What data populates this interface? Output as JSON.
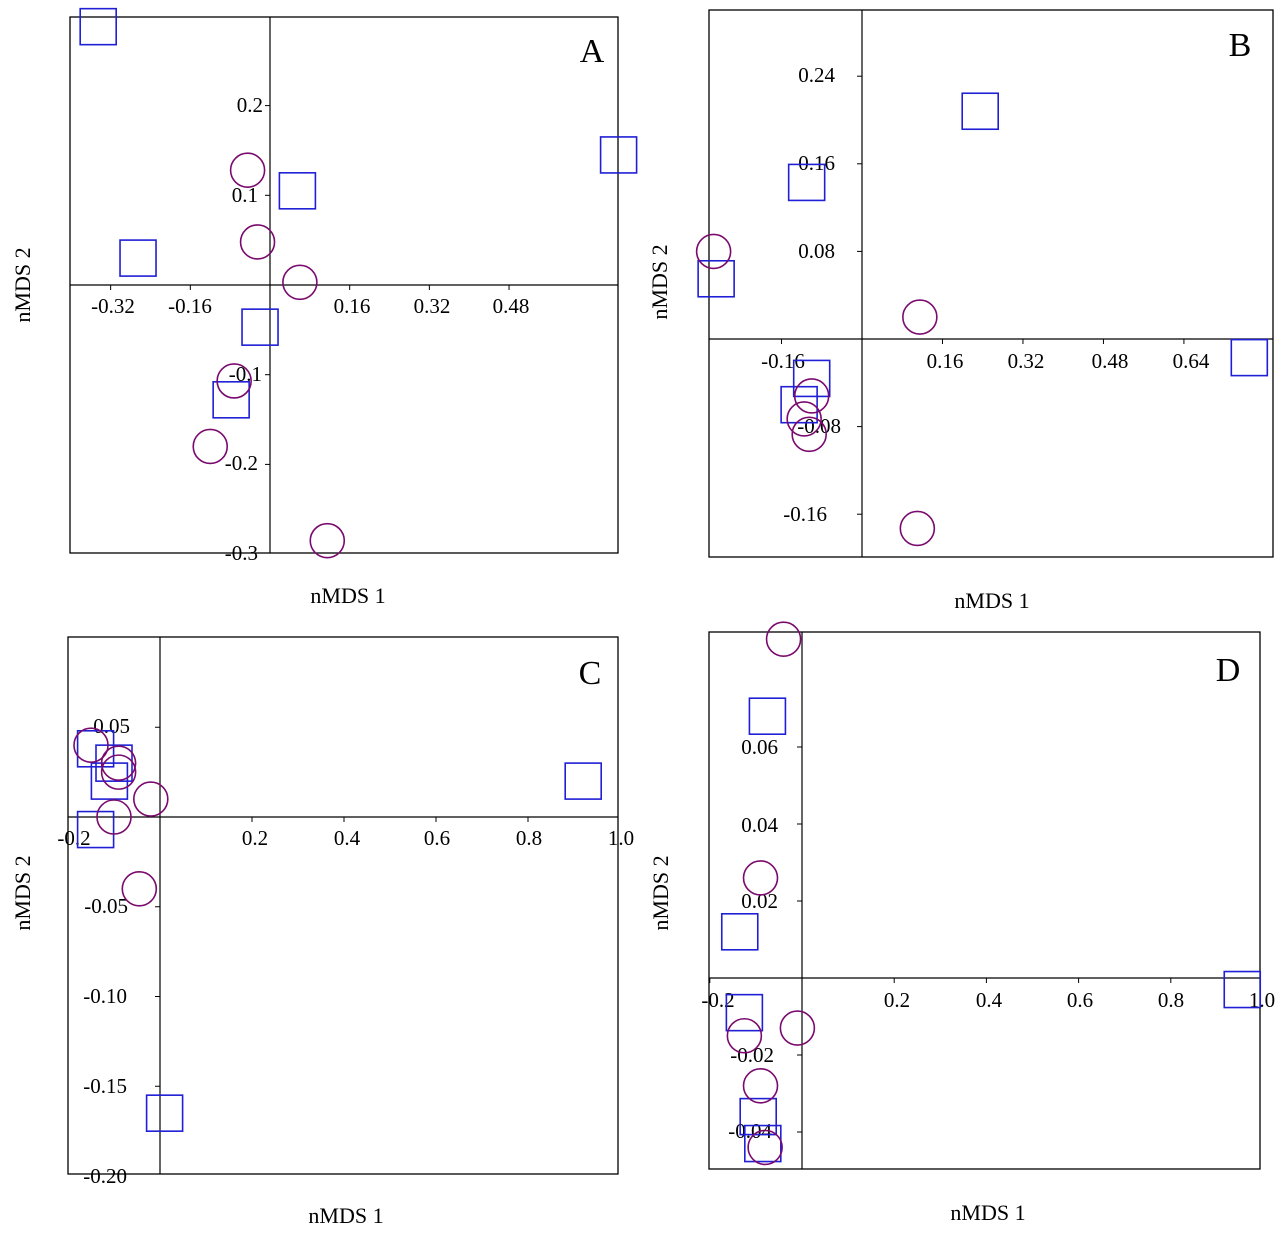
{
  "chart_data": [
    {
      "type": "scatter",
      "panel_label": "A",
      "xlabel": "nMDS 1",
      "ylabel": "nMDS 2",
      "x_ticks": [
        "-0.32",
        "-0.16",
        "0.16",
        "0.32",
        "0.48"
      ],
      "y_ticks": [
        "0.2",
        "0.1",
        "-0.1",
        "-0.2",
        "-0.3"
      ],
      "xlim": [
        -0.41,
        0.71
      ],
      "ylim": [
        -0.3,
        0.3
      ],
      "series": [
        {
          "marker": "square",
          "color": "#1f1fd6",
          "points": [
            [
              -0.345,
              0.288
            ],
            [
              0.055,
              0.105
            ],
            [
              0.7,
              0.145
            ],
            [
              -0.265,
              0.03
            ],
            [
              -0.02,
              -0.047
            ],
            [
              -0.078,
              -0.128
            ]
          ]
        },
        {
          "marker": "circle",
          "color": "#7a0a6e",
          "points": [
            [
              -0.045,
              0.128
            ],
            [
              -0.025,
              0.048
            ],
            [
              0.06,
              0.003
            ],
            [
              -0.072,
              -0.107
            ],
            [
              -0.12,
              -0.18
            ],
            [
              0.115,
              -0.285
            ]
          ]
        }
      ]
    },
    {
      "type": "scatter",
      "panel_label": "B",
      "xlabel": "nMDS 1",
      "ylabel": "nMDS 2",
      "x_ticks": [
        "-0.16",
        "0.16",
        "0.32",
        "0.48",
        "0.64"
      ],
      "y_ticks": [
        "0.24",
        "0.16",
        "0.08",
        "-0.08",
        "-0.16"
      ],
      "xlim": [
        -0.305,
        0.805
      ],
      "ylim": [
        -0.197,
        0.3
      ],
      "series": [
        {
          "marker": "square",
          "color": "#1f1fd6",
          "points": [
            [
              0.235,
              0.208
            ],
            [
              -0.11,
              0.143
            ],
            [
              -0.29,
              0.055
            ],
            [
              0.77,
              -0.017
            ],
            [
              -0.1,
              -0.036
            ],
            [
              -0.125,
              -0.06
            ]
          ]
        },
        {
          "marker": "circle",
          "color": "#7a0a6e",
          "points": [
            [
              -0.295,
              0.08
            ],
            [
              0.115,
              0.02
            ],
            [
              -0.1,
              -0.052
            ],
            [
              -0.115,
              -0.073
            ],
            [
              -0.105,
              -0.087
            ],
            [
              0.11,
              -0.173
            ]
          ]
        }
      ]
    },
    {
      "type": "scatter",
      "panel_label": "C",
      "xlabel": "nMDS 1",
      "ylabel": "nMDS 2",
      "x_ticks": [
        "-0.2",
        "0.2",
        "0.4",
        "0.6",
        "0.8",
        "1.0"
      ],
      "y_ticks": [
        "0.05",
        "-0.05",
        "-0.10",
        "-0.15",
        "-0.20"
      ],
      "xlim": [
        -0.2,
        1.0
      ],
      "ylim": [
        -0.2,
        0.1
      ],
      "series": [
        {
          "marker": "square",
          "color": "#1f1fd6",
          "points": [
            [
              -0.14,
              0.038
            ],
            [
              -0.1,
              0.03
            ],
            [
              -0.11,
              0.02
            ],
            [
              -0.14,
              -0.007
            ],
            [
              0.92,
              0.02
            ],
            [
              0.01,
              -0.165
            ]
          ]
        },
        {
          "marker": "circle",
          "color": "#7a0a6e",
          "points": [
            [
              -0.15,
              0.04
            ],
            [
              -0.09,
              0.03
            ],
            [
              -0.09,
              0.025
            ],
            [
              -0.02,
              0.01
            ],
            [
              -0.1,
              0.0
            ],
            [
              -0.045,
              -0.04
            ]
          ]
        }
      ]
    },
    {
      "type": "scatter",
      "panel_label": "D",
      "xlabel": "nMDS 1",
      "ylabel": "nMDS 2",
      "x_ticks": [
        "-0.2",
        "0.2",
        "0.4",
        "0.6",
        "0.8",
        "1.0"
      ],
      "y_ticks": [
        "0.06",
        "0.04",
        "0.02",
        "-0.02",
        "-0.04"
      ],
      "xlim": [
        -0.2,
        1.0
      ],
      "ylim": [
        -0.05,
        0.09
      ],
      "series": [
        {
          "marker": "square",
          "color": "#1f1fd6",
          "points": [
            [
              -0.075,
              0.068
            ],
            [
              -0.135,
              0.012
            ],
            [
              -0.125,
              -0.009
            ],
            [
              -0.095,
              -0.036
            ],
            [
              -0.085,
              -0.043
            ],
            [
              0.955,
              -0.003
            ]
          ]
        },
        {
          "marker": "circle",
          "color": "#7a0a6e",
          "points": [
            [
              -0.04,
              0.088
            ],
            [
              -0.09,
              0.026
            ],
            [
              -0.125,
              -0.015
            ],
            [
              -0.01,
              -0.013
            ],
            [
              -0.09,
              -0.028
            ],
            [
              -0.08,
              -0.044
            ]
          ]
        }
      ]
    }
  ]
}
